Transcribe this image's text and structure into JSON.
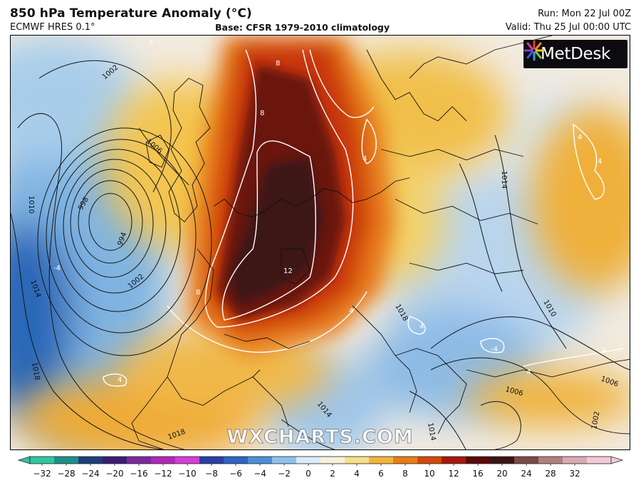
{
  "header": {
    "title": "850 hPa Temperature Anomaly (°C)",
    "model": "ECMWF HRES 0.1°",
    "base": "Base: CFSR 1979-2010 climatology",
    "run": "Run: Mon 22 Jul 00Z",
    "valid": "Valid: Thu 25 Jul 00:00 UTC"
  },
  "logo": {
    "text": "MetDesk"
  },
  "watermark": "WXCHARTS.COM",
  "map": {
    "isobar_labels": [
      "1002",
      "1006",
      "1010",
      "998",
      "994",
      "1002",
      "1014",
      "1018",
      "1014",
      "1018",
      "1010",
      "1006",
      "1006",
      "1002",
      "1014",
      "1018",
      "1014"
    ],
    "anomaly_labels": [
      "8",
      "8",
      "12",
      "8",
      "4",
      "4",
      "4",
      "4",
      "-4",
      "-4",
      "4",
      "4",
      "4",
      "4",
      "4"
    ],
    "colors": {
      "cold_deep": "#1f5fb0",
      "cold": "#8fbfe8",
      "neutral": "#f3eee6",
      "warm": "#f2c24a",
      "hot": "#e36a12",
      "very_hot": "#b8200f",
      "extreme": "#3a0a0a"
    }
  },
  "colorbar": {
    "ticks": [
      "−32",
      "−28",
      "−24",
      "−20",
      "−16",
      "−12",
      "−10",
      "−8",
      "−6",
      "−4",
      "−2",
      "0",
      "2",
      "4",
      "6",
      "8",
      "10",
      "12",
      "16",
      "20",
      "24",
      "28",
      "32"
    ],
    "colors": [
      "#2fc6a0",
      "#1d8f86",
      "#1c3f7a",
      "#3b1d74",
      "#7a2a9c",
      "#b028b8",
      "#d43fd6",
      "#2a3ea6",
      "#2f63c4",
      "#4a8fd8",
      "#8fc0ea",
      "#dcebf7",
      "#f6f1da",
      "#f7df8a",
      "#f2b53a",
      "#e67e15",
      "#d3480b",
      "#a8180c",
      "#5a0a0a",
      "#3a1414",
      "#7a4a46",
      "#b0807c",
      "#d9a9b0",
      "#f3c9d6"
    ]
  }
}
